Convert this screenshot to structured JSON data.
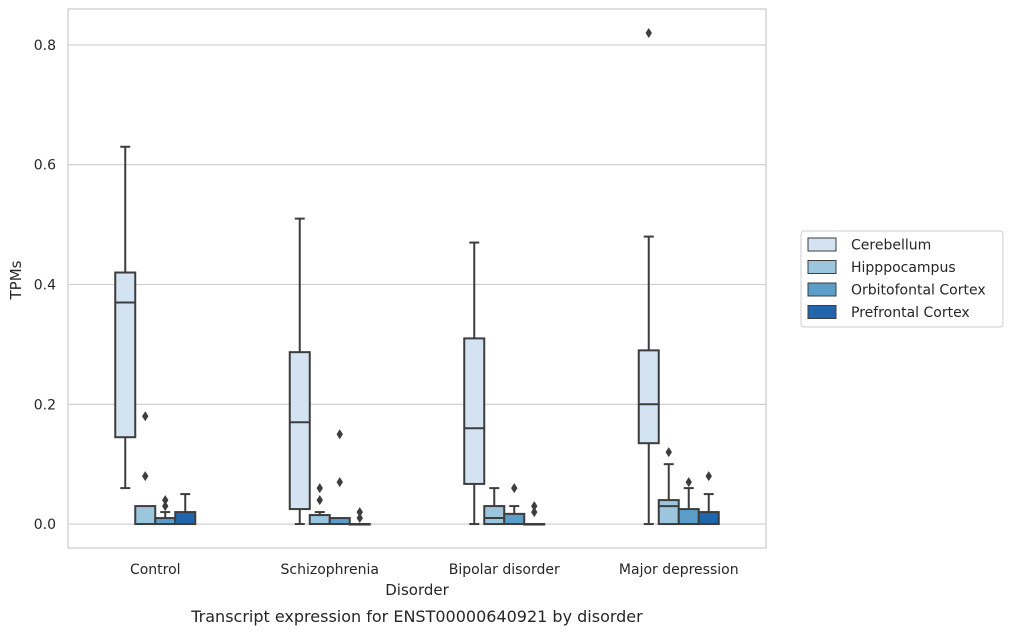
{
  "chart_data": {
    "type": "boxplot",
    "title": "",
    "caption": "Transcript expression for ENST00000640921 by disorder",
    "xlabel": "Disorder",
    "ylabel": "TPMs",
    "ylim": [
      -0.04,
      0.86
    ],
    "yticks": [
      0.0,
      0.2,
      0.4,
      0.6,
      0.8
    ],
    "ytick_labels": [
      "0.0",
      "0.2",
      "0.4",
      "0.6",
      "0.8"
    ],
    "grid": "horizontal",
    "legend_placement": "right",
    "categories": [
      "Control",
      "Schizophrenia",
      "Bipolar disorder",
      "Major depression"
    ],
    "series": [
      {
        "name": "Cerebellum",
        "color": "#d3e3f1",
        "boxes": [
          {
            "whislo": 0.06,
            "q1": 0.145,
            "med": 0.37,
            "q3": 0.42,
            "whishi": 0.63,
            "fliers": []
          },
          {
            "whislo": 0.0,
            "q1": 0.025,
            "med": 0.17,
            "q3": 0.287,
            "whishi": 0.51,
            "fliers": []
          },
          {
            "whislo": 0.0,
            "q1": 0.067,
            "med": 0.16,
            "q3": 0.31,
            "whishi": 0.47,
            "fliers": []
          },
          {
            "whislo": 0.0,
            "q1": 0.135,
            "med": 0.2,
            "q3": 0.29,
            "whishi": 0.48,
            "fliers": [
              0.82
            ]
          }
        ]
      },
      {
        "name": "Hipppocampus",
        "color": "#9cc5de",
        "boxes": [
          {
            "whislo": 0.0,
            "q1": 0.0,
            "med": 0.0,
            "q3": 0.03,
            "whishi": 0.03,
            "fliers": [
              0.18,
              0.08
            ]
          },
          {
            "whislo": 0.0,
            "q1": 0.0,
            "med": 0.0,
            "q3": 0.015,
            "whishi": 0.02,
            "fliers": [
              0.06,
              0.04
            ]
          },
          {
            "whislo": 0.0,
            "q1": 0.0,
            "med": 0.01,
            "q3": 0.03,
            "whishi": 0.06,
            "fliers": []
          },
          {
            "whislo": 0.0,
            "q1": 0.0,
            "med": 0.03,
            "q3": 0.04,
            "whishi": 0.1,
            "fliers": [
              0.12
            ]
          }
        ]
      },
      {
        "name": "Orbitofontal Cortex",
        "color": "#5b9ec9",
        "boxes": [
          {
            "whislo": 0.0,
            "q1": 0.0,
            "med": 0.0,
            "q3": 0.01,
            "whishi": 0.02,
            "fliers": [
              0.04,
              0.03
            ]
          },
          {
            "whislo": 0.0,
            "q1": 0.0,
            "med": 0.0,
            "q3": 0.01,
            "whishi": 0.01,
            "fliers": [
              0.15,
              0.07
            ]
          },
          {
            "whislo": 0.0,
            "q1": 0.0,
            "med": 0.0,
            "q3": 0.017,
            "whishi": 0.03,
            "fliers": [
              0.06
            ]
          },
          {
            "whislo": 0.0,
            "q1": 0.0,
            "med": 0.0,
            "q3": 0.025,
            "whishi": 0.06,
            "fliers": [
              0.07
            ]
          }
        ]
      },
      {
        "name": "Prefrontal Cortex",
        "color": "#2166ac",
        "boxes": [
          {
            "whislo": 0.0,
            "q1": 0.0,
            "med": 0.0,
            "q3": 0.02,
            "whishi": 0.05,
            "fliers": []
          },
          {
            "whislo": 0.0,
            "q1": 0.0,
            "med": 0.0,
            "q3": 0.0,
            "whishi": 0.0,
            "fliers": [
              0.02,
              0.01
            ]
          },
          {
            "whislo": 0.0,
            "q1": 0.0,
            "med": 0.0,
            "q3": 0.0,
            "whishi": 0.0,
            "fliers": [
              0.03,
              0.02
            ]
          },
          {
            "whislo": 0.0,
            "q1": 0.0,
            "med": 0.0,
            "q3": 0.02,
            "whishi": 0.05,
            "fliers": [
              0.08
            ]
          }
        ]
      }
    ]
  }
}
